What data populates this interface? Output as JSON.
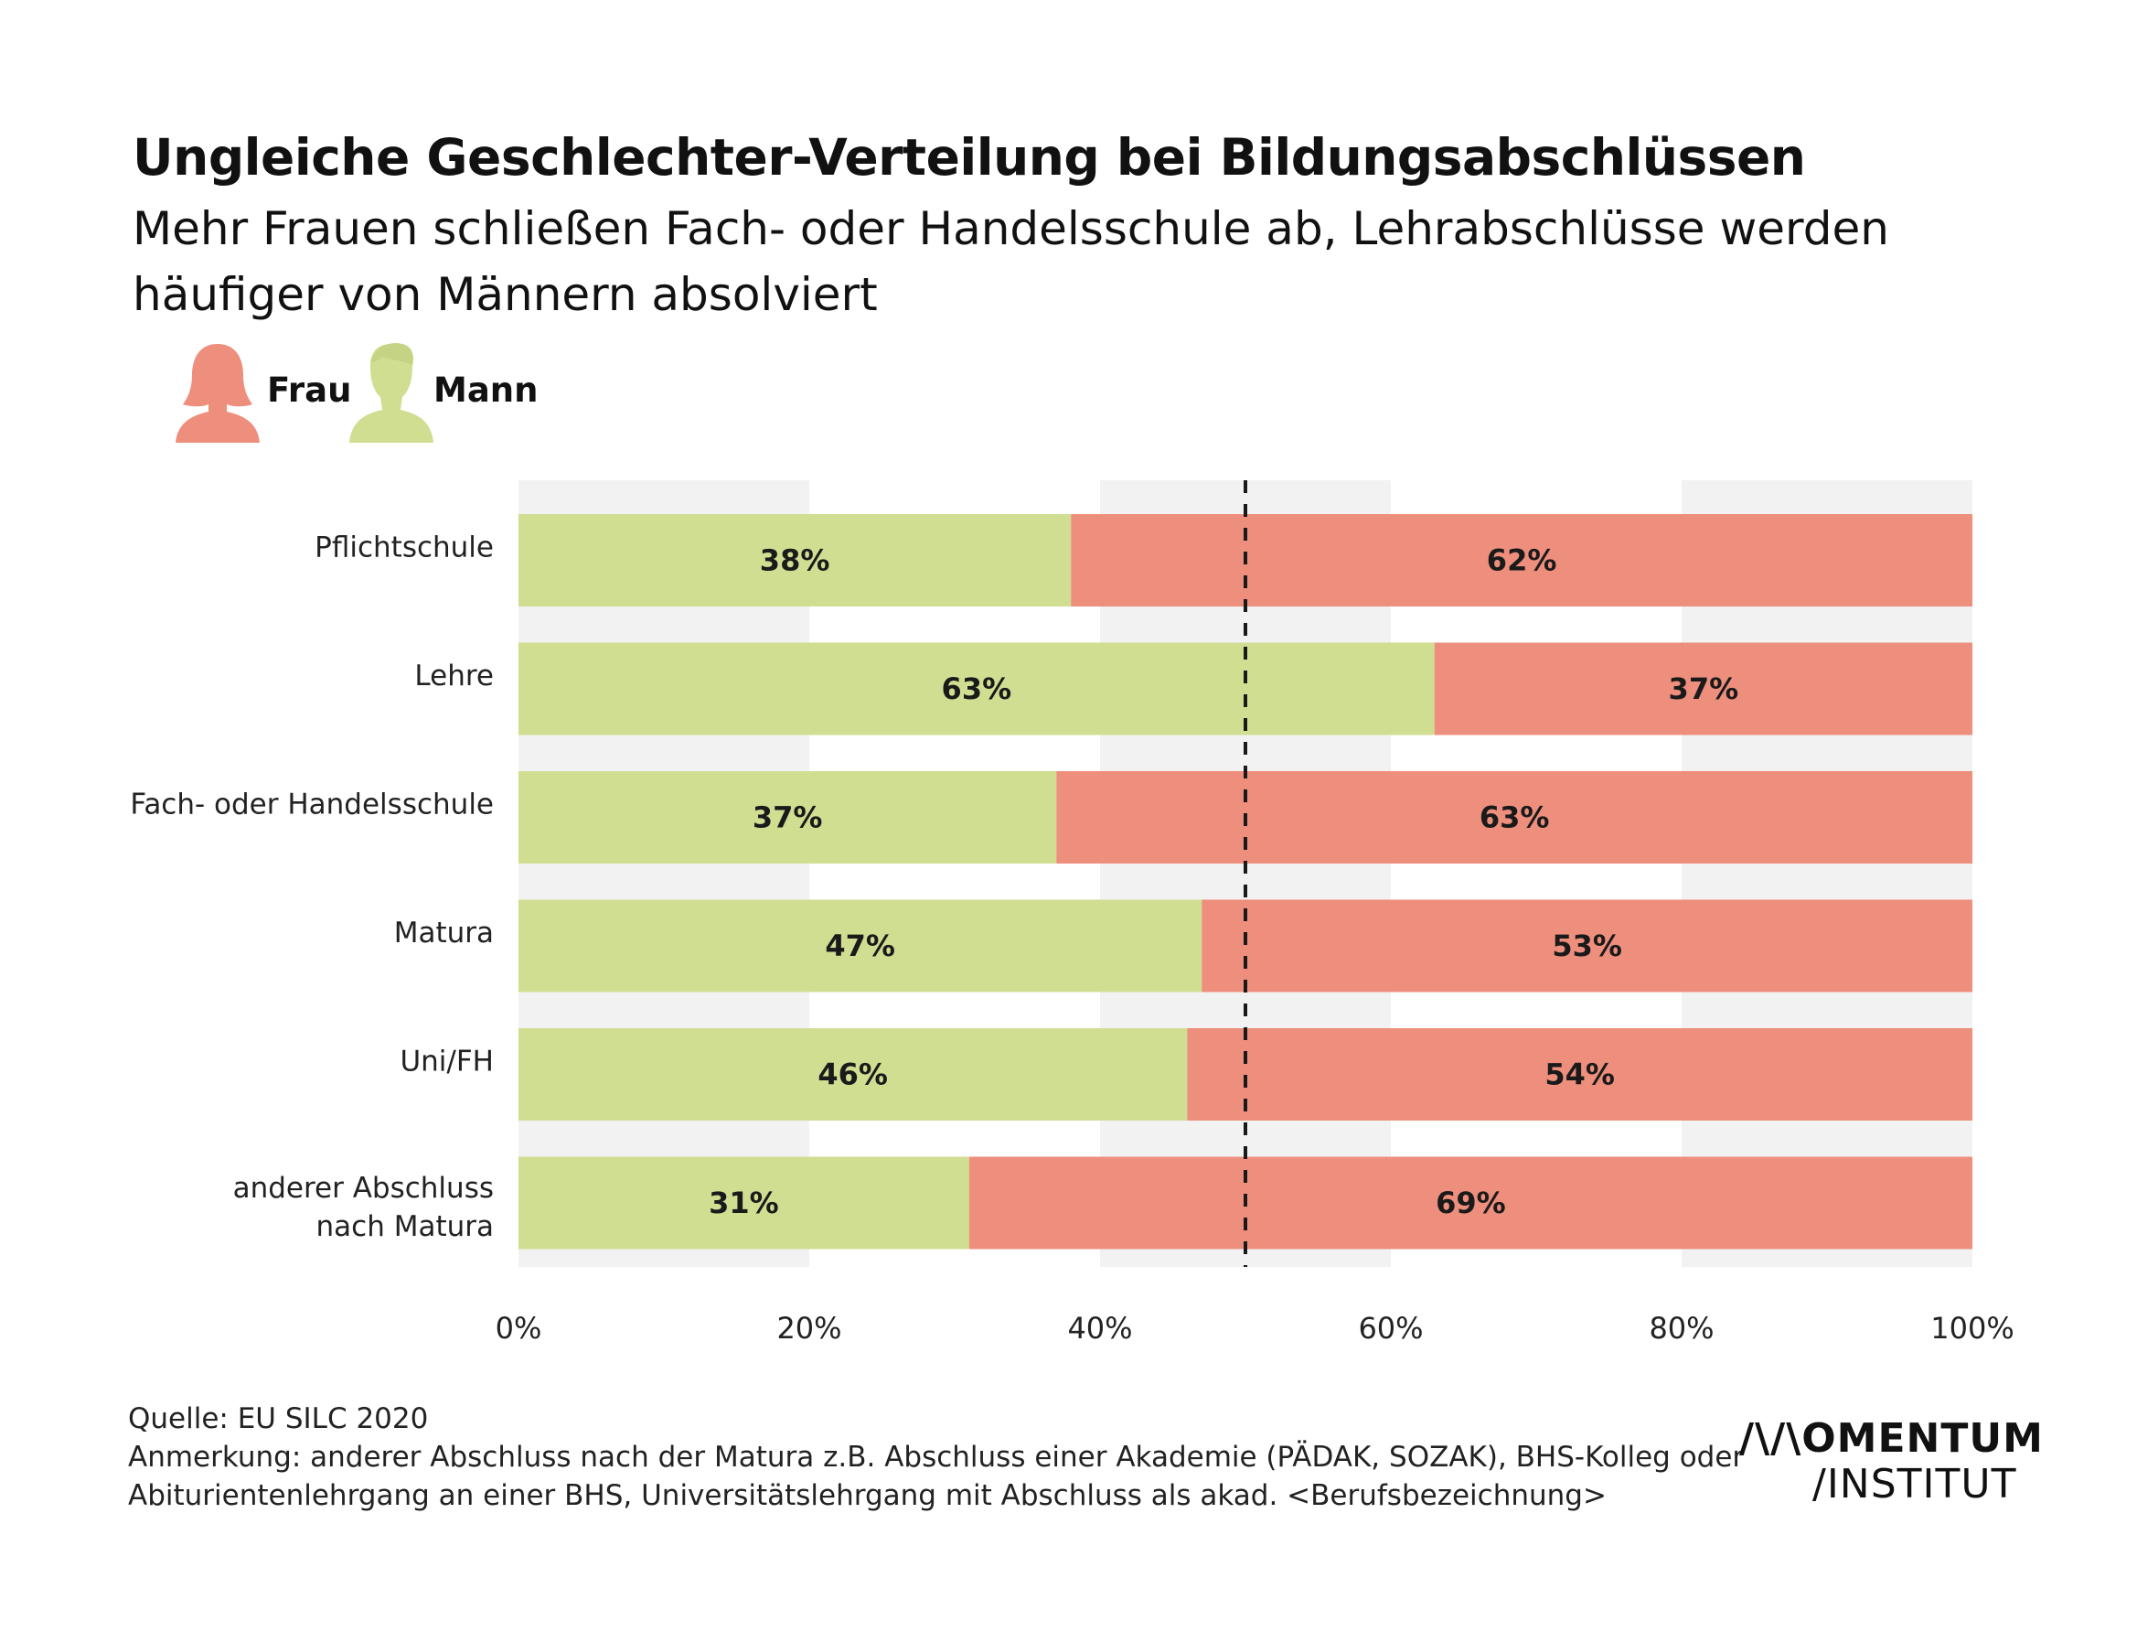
{
  "title": "Ungleiche Geschlechter-Verteilung bei Bildungsabschlüssen",
  "subtitle": "Mehr Frauen schließen Fach- oder Handelsschule ab, Lehrabschlüsse werden häufiger von Männern absolviert",
  "legend": {
    "frau": {
      "label": "Frau",
      "icon": "woman-silhouette-icon",
      "color": "#EE8E7C"
    },
    "mann": {
      "label": "Mann",
      "icon": "man-silhouette-icon",
      "color": "#D0DE92"
    }
  },
  "chart_data": {
    "type": "bar",
    "orientation": "horizontal",
    "stacked": true,
    "categories": [
      "Pflichtschule",
      "Lehre",
      "Fach- oder Handelsschule",
      "Matura",
      "Uni/FH",
      "anderer Abschluss nach Matura"
    ],
    "series": [
      {
        "name": "Mann",
        "color": "#D0DE92",
        "values": [
          38,
          63,
          37,
          47,
          46,
          31
        ],
        "labels": [
          "38%",
          "63%",
          "37%",
          "47%",
          "46%",
          "31%"
        ]
      },
      {
        "name": "Frau",
        "color": "#EE8E7C",
        "values": [
          62,
          37,
          63,
          53,
          54,
          69
        ],
        "labels": [
          "62%",
          "37%",
          "63%",
          "53%",
          "54%",
          "69%"
        ]
      }
    ],
    "xlim": [
      0,
      100
    ],
    "x_ticks": [
      0,
      20,
      40,
      60,
      80,
      100
    ],
    "x_tick_labels": [
      "0%",
      "20%",
      "40%",
      "60%",
      "80%",
      "100%"
    ],
    "reference_line": {
      "value": 50,
      "style": "dashed"
    },
    "grid": "alternating vertical bands"
  },
  "footer": {
    "source": "Quelle: EU SILC 2020",
    "note_line1": "Anmerkung: anderer Abschluss nach der Matura z.B. Abschluss einer Akademie (PÄDAK, SOZAK), BHS-Kolleg oder",
    "note_line2": "Abiturientenlehrgang an einer BHS, Universitätslehrgang mit Abschluss als akad. <Berufsbezeichnung>"
  },
  "logo": {
    "line1": "/\\/\\OMENTUM",
    "line2": "/INSTITUT"
  }
}
